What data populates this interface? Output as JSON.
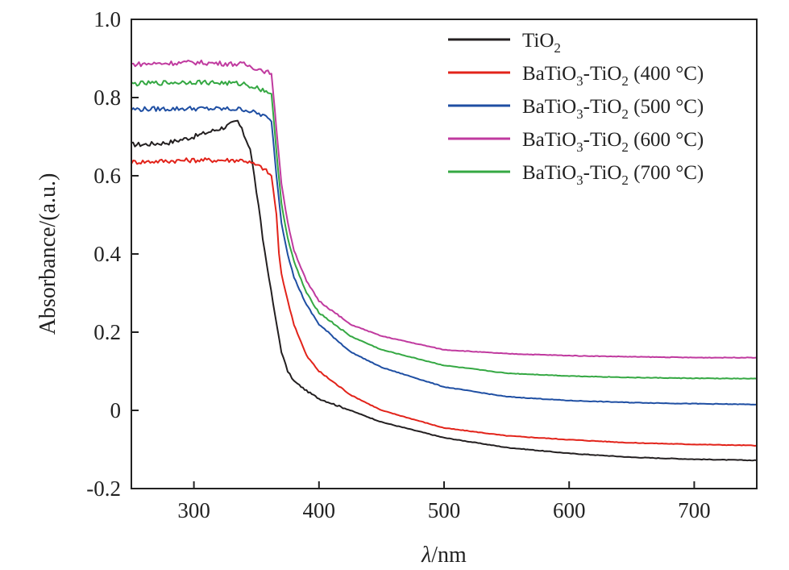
{
  "chart_data": {
    "type": "line",
    "title": "",
    "xlabel_italic": "λ",
    "xlabel_rest": "/nm",
    "ylabel": "Absorbance/(a.u.)",
    "xlim": [
      250,
      750
    ],
    "ylim": [
      -0.2,
      1.0
    ],
    "xticks": [
      300,
      400,
      500,
      600,
      700
    ],
    "xtick_labels": [
      "300",
      "400",
      "500",
      "600",
      "700"
    ],
    "yticks": [
      -0.2,
      0,
      0.2,
      0.4,
      0.6,
      0.8,
      1.0
    ],
    "ytick_labels": [
      "-0.2",
      "0",
      "0.2",
      "0.4",
      "0.6",
      "0.8",
      "1.0"
    ],
    "grid": false,
    "legend_position": "top-right",
    "series": [
      {
        "name": "TiO2",
        "legend": {
          "base": "TiO",
          "sub": "2",
          "suffix": ""
        },
        "color": "#231f20",
        "x": [
          250,
          260,
          280,
          300,
          315,
          325,
          335,
          340,
          345,
          350,
          355,
          360,
          365,
          370,
          375,
          380,
          390,
          400,
          425,
          450,
          500,
          550,
          600,
          650,
          700,
          750
        ],
        "y": [
          0.68,
          0.68,
          0.685,
          0.7,
          0.715,
          0.725,
          0.74,
          0.705,
          0.67,
          0.56,
          0.44,
          0.34,
          0.24,
          0.15,
          0.1,
          0.075,
          0.05,
          0.03,
          0.0,
          -0.03,
          -0.07,
          -0.095,
          -0.11,
          -0.12,
          -0.125,
          -0.128
        ]
      },
      {
        "name": "BaTiO3-TiO2 (400 °C)",
        "legend": {
          "base": "BaTiO",
          "sub": "3",
          "mid": "-TiO",
          "sub2": "2",
          "suffix": " (400 °C)"
        },
        "color": "#e2231a",
        "x": [
          250,
          300,
          340,
          355,
          362,
          366,
          368,
          370,
          375,
          380,
          390,
          400,
          425,
          450,
          500,
          550,
          600,
          650,
          700,
          750
        ],
        "y": [
          0.635,
          0.64,
          0.64,
          0.62,
          0.6,
          0.5,
          0.4,
          0.35,
          0.28,
          0.22,
          0.14,
          0.1,
          0.04,
          0.0,
          -0.045,
          -0.065,
          -0.075,
          -0.083,
          -0.087,
          -0.09
        ]
      },
      {
        "name": "BaTiO3-TiO2 (500 °C)",
        "legend": {
          "base": "BaTiO",
          "sub": "3",
          "mid": "-TiO",
          "sub2": "2",
          "suffix": " (500 °C)"
        },
        "color": "#1f4fa3",
        "x": [
          250,
          300,
          340,
          355,
          362,
          366,
          370,
          375,
          380,
          390,
          400,
          425,
          450,
          500,
          550,
          600,
          650,
          700,
          750
        ],
        "y": [
          0.77,
          0.772,
          0.77,
          0.755,
          0.74,
          0.6,
          0.48,
          0.4,
          0.34,
          0.27,
          0.22,
          0.15,
          0.11,
          0.06,
          0.035,
          0.025,
          0.02,
          0.017,
          0.015
        ]
      },
      {
        "name": "BaTiO3-TiO2 (600 °C)",
        "legend": {
          "base": "BaTiO",
          "sub": "3",
          "mid": "-TiO",
          "sub2": "2",
          "suffix": " (600 °C)"
        },
        "color": "#c03a9f",
        "x": [
          250,
          300,
          340,
          355,
          362,
          366,
          370,
          375,
          380,
          390,
          400,
          425,
          450,
          500,
          550,
          600,
          650,
          700,
          750
        ],
        "y": [
          0.885,
          0.89,
          0.885,
          0.87,
          0.86,
          0.72,
          0.58,
          0.48,
          0.41,
          0.33,
          0.28,
          0.22,
          0.19,
          0.155,
          0.145,
          0.14,
          0.137,
          0.135,
          0.135
        ]
      },
      {
        "name": "BaTiO3-TiO2 (700 °C)",
        "legend": {
          "base": "BaTiO",
          "sub": "3",
          "mid": "-TiO",
          "sub2": "2",
          "suffix": " (700 °C)"
        },
        "color": "#35a843",
        "x": [
          250,
          300,
          340,
          355,
          362,
          366,
          370,
          375,
          380,
          390,
          400,
          425,
          450,
          500,
          550,
          600,
          650,
          700,
          750
        ],
        "y": [
          0.835,
          0.84,
          0.835,
          0.82,
          0.81,
          0.66,
          0.53,
          0.44,
          0.38,
          0.3,
          0.25,
          0.19,
          0.155,
          0.115,
          0.095,
          0.088,
          0.084,
          0.082,
          0.081
        ]
      }
    ]
  }
}
